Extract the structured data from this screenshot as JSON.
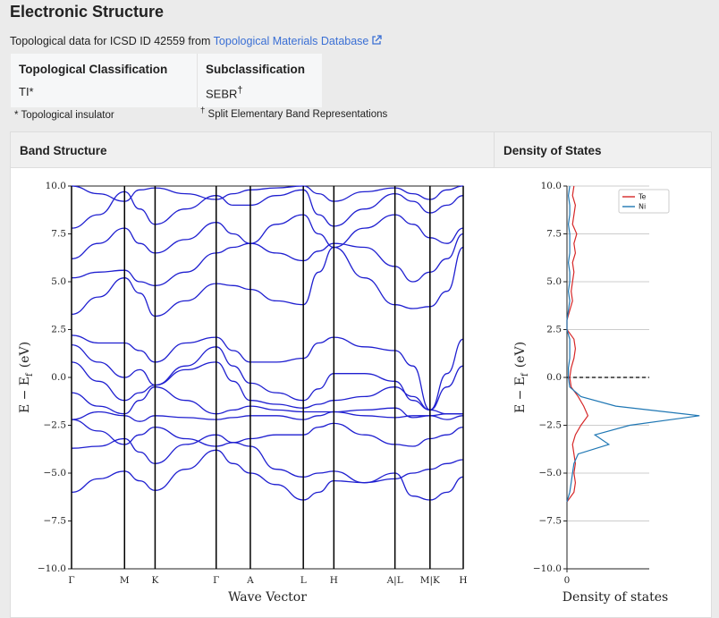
{
  "header": {
    "title": "Electronic Structure",
    "source_text": "Topological data for ICSD ID 42559 from",
    "source_link": "Topological Materials Database"
  },
  "classification": {
    "headers": [
      "Topological Classification",
      "Subclassification"
    ],
    "classification": "TI*",
    "subclassification": {
      "value": "SEBR",
      "mark": "†"
    },
    "footnotes": [
      "* Topological insulator",
      {
        "mark": "†",
        "text": "Split Elementary Band Representations"
      }
    ]
  },
  "panels": [
    "Band Structure",
    "Density of States"
  ],
  "chart_data": [
    {
      "type": "line",
      "xlabel": "Wave Vector",
      "ylabel": {
        "main": "E − E",
        "sub": "f",
        "unit": "(eV)"
      },
      "xlim": [
        0,
        436
      ],
      "xticks": [
        {
          "value": 0,
          "label": "Γ"
        },
        {
          "value": 59,
          "label": "M"
        },
        {
          "value": 93,
          "label": "K"
        },
        {
          "value": 161,
          "label": "Γ"
        },
        {
          "value": 199,
          "label": "A"
        },
        {
          "value": 258,
          "label": "L"
        },
        {
          "value": 292,
          "label": "H"
        },
        {
          "value": 360,
          "label": "A|L"
        },
        {
          "value": 399,
          "label": "M|K"
        },
        {
          "value": 436,
          "label": "H"
        }
      ],
      "ylim": [
        -10,
        10
      ],
      "yticks": [
        {
          "value": -10,
          "label": "−10.0"
        },
        {
          "value": -7.5,
          "label": "−7.5"
        },
        {
          "value": -5,
          "label": "−5.0"
        },
        {
          "value": -2.5,
          "label": "−2.5"
        },
        {
          "value": 0,
          "label": "0.0"
        },
        {
          "value": 2.5,
          "label": "2.5"
        },
        {
          "value": 5,
          "label": "5.0"
        },
        {
          "value": 7.5,
          "label": "7.5"
        },
        {
          "value": 10,
          "label": "10.0"
        }
      ],
      "x": [
        0,
        30,
        59,
        76,
        93,
        127,
        161,
        180,
        199,
        228,
        258,
        275,
        292,
        326,
        360,
        380,
        399,
        418,
        436
      ],
      "color": "#1f1fd0",
      "series": [
        {
          "values": [
            -6.0,
            -5.3,
            -4.9,
            -5.4,
            -5.9,
            -4.8,
            -3.8,
            -4.5,
            -5.0,
            -5.6,
            -6.4,
            -6.0,
            -5.4,
            -5.5,
            -5.0,
            -6.2,
            -6.4,
            -6.0,
            -5.2
          ]
        },
        {
          "values": [
            -3.7,
            -3.6,
            -3.2,
            -3.9,
            -4.5,
            -3.5,
            -3.0,
            -3.4,
            -3.6,
            -4.8,
            -5.2,
            -5.0,
            -4.9,
            -5.5,
            -5.3,
            -5.0,
            -4.8,
            -4.5,
            -4.3
          ]
        },
        {
          "values": [
            -2.2,
            -2.8,
            -3.5,
            -3.0,
            -2.6,
            -3.2,
            -3.6,
            -3.4,
            -3.2,
            -3.0,
            -3.0,
            -2.6,
            -2.4,
            -3.0,
            -3.5,
            -3.6,
            -3.2,
            -3.0,
            -2.6
          ]
        },
        {
          "values": [
            -2.2,
            -1.8,
            -2.0,
            -2.3,
            -2.0,
            -2.1,
            -2.2,
            -2.1,
            -2.0,
            -2.0,
            -2.2,
            -2.0,
            -1.8,
            -2.0,
            -2.1,
            -2.0,
            -2.0,
            -2.2,
            -2.0
          ]
        },
        {
          "values": [
            -0.8,
            -1.5,
            -1.9,
            -1.2,
            -0.5,
            -1.2,
            -1.9,
            -1.7,
            -1.5,
            -1.7,
            -1.8,
            -1.8,
            -1.8,
            -1.7,
            -1.6,
            -2.1,
            -2.0,
            -1.9,
            -1.9
          ]
        },
        {
          "values": [
            0.8,
            -0.2,
            -1.2,
            -0.8,
            -0.4,
            0.4,
            0.8,
            -0.2,
            -1.2,
            -1.4,
            -1.6,
            -1.4,
            -1.2,
            -1.0,
            -0.5,
            -1.0,
            -1.7,
            -1.9,
            -1.9
          ]
        },
        {
          "values": [
            1.7,
            0.8,
            0.0,
            0.4,
            -0.4,
            0.6,
            1.6,
            0.6,
            -0.3,
            -0.8,
            -1.2,
            -0.6,
            0.2,
            0.2,
            -0.2,
            -1.2,
            -1.7,
            -0.5,
            0.6
          ]
        },
        {
          "values": [
            2.2,
            1.8,
            1.8,
            1.4,
            0.8,
            1.8,
            2.1,
            1.4,
            0.8,
            0.8,
            1.0,
            1.8,
            2.1,
            1.6,
            1.4,
            0.6,
            -1.7,
            0.2,
            2.0
          ]
        },
        {
          "values": [
            3.3,
            4.2,
            5.2,
            4.4,
            3.2,
            4.0,
            4.9,
            4.8,
            4.6,
            4.0,
            3.8,
            5.5,
            6.8,
            5.2,
            3.8,
            3.6,
            3.7,
            4.5,
            6.8
          ]
        },
        {
          "values": [
            5.2,
            5.5,
            5.6,
            5.0,
            4.8,
            5.5,
            6.5,
            6.8,
            7.0,
            6.5,
            6.1,
            6.6,
            7.0,
            6.8,
            5.8,
            5.0,
            5.5,
            6.2,
            7.5
          ]
        },
        {
          "values": [
            6.2,
            7.0,
            7.8,
            7.0,
            6.5,
            7.2,
            8.1,
            7.5,
            7.0,
            8.0,
            8.5,
            7.5,
            6.8,
            7.8,
            8.5,
            8.0,
            7.3,
            7.0,
            7.8
          ]
        },
        {
          "values": [
            7.8,
            8.5,
            9.7,
            8.8,
            8.0,
            8.8,
            9.5,
            9.0,
            9.0,
            9.5,
            9.8,
            8.5,
            7.9,
            8.8,
            9.6,
            9.2,
            8.6,
            9.0,
            9.5
          ]
        },
        {
          "values": [
            10.0,
            9.6,
            9.2,
            9.8,
            9.9,
            9.6,
            9.3,
            9.6,
            9.8,
            9.9,
            10.0,
            9.6,
            9.2,
            9.7,
            9.9,
            9.6,
            9.3,
            9.8,
            10.0
          ]
        }
      ]
    },
    {
      "type": "line",
      "orientation": "horizontal",
      "xlabel": "Density of states",
      "ylabel": {
        "main": "E − E",
        "sub": "f",
        "unit": "(eV)"
      },
      "xlim": [
        0,
        1
      ],
      "xticks": [
        0
      ],
      "ylim": [
        -10,
        10
      ],
      "yticks": [
        {
          "value": -10,
          "label": "−10.0"
        },
        {
          "value": -7.5,
          "label": "−7.5"
        },
        {
          "value": -5,
          "label": "−5.0"
        },
        {
          "value": -2.5,
          "label": "−2.5"
        },
        {
          "value": 0,
          "label": "0.0"
        },
        {
          "value": 2.5,
          "label": "2.5"
        },
        {
          "value": 5,
          "label": "5.0"
        },
        {
          "value": 7.5,
          "label": "7.5"
        },
        {
          "value": 10,
          "label": "10.0"
        }
      ],
      "grid": true,
      "legend": "upper right",
      "fermi_level": 0,
      "y": [
        -6.5,
        -6,
        -5.5,
        -5,
        -4.5,
        -4,
        -3.5,
        -3,
        -2.5,
        -2,
        -1.5,
        -1,
        -0.5,
        0,
        0.5,
        1,
        1.5,
        2,
        2.5,
        3,
        3.5,
        4,
        4.5,
        5,
        5.5,
        6,
        6.5,
        7,
        7.5,
        8,
        8.5,
        9,
        9.5,
        10
      ],
      "series": [
        {
          "name": "Te",
          "color": "#d62728",
          "values": [
            0,
            0.05,
            0.06,
            0.05,
            0.06,
            0.05,
            0.04,
            0.06,
            0.1,
            0.15,
            0.12,
            0.08,
            0.03,
            0.02,
            0.03,
            0.05,
            0.06,
            0.05,
            0,
            0,
            0.02,
            0.04,
            0.03,
            0.04,
            0.05,
            0.04,
            0.06,
            0.05,
            0.07,
            0.04,
            0.05,
            0.06,
            0.04,
            0.05
          ]
        },
        {
          "name": "Ni",
          "color": "#1f77b4",
          "values": [
            0,
            0.02,
            0.03,
            0.04,
            0.05,
            0.08,
            0.3,
            0.2,
            0.45,
            0.95,
            0.35,
            0.1,
            0.02,
            0.01,
            0.01,
            0.02,
            0.02,
            0.02,
            0,
            0,
            0.01,
            0.02,
            0.01,
            0.02,
            0.02,
            0.01,
            0.02,
            0.02,
            0.02,
            0.01,
            0.02,
            0.02,
            0.01,
            0.02
          ]
        }
      ]
    }
  ]
}
